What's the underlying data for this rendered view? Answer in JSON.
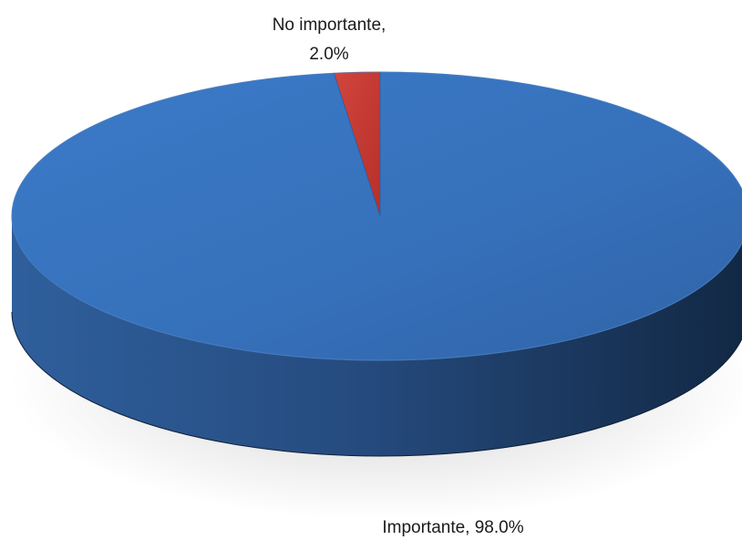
{
  "chart_data": {
    "type": "pie",
    "title": "",
    "categories": [
      "No importante",
      "Importante"
    ],
    "values": [
      2.0,
      98.0
    ],
    "unit": "%",
    "colors": [
      "#c0392b",
      "#3a78c4"
    ],
    "three_d": true,
    "data_labels": [
      {
        "line1": "No importante,",
        "line2": "2.0%"
      },
      {
        "line1": "Importante, 98.0%"
      }
    ],
    "legend": "none"
  }
}
